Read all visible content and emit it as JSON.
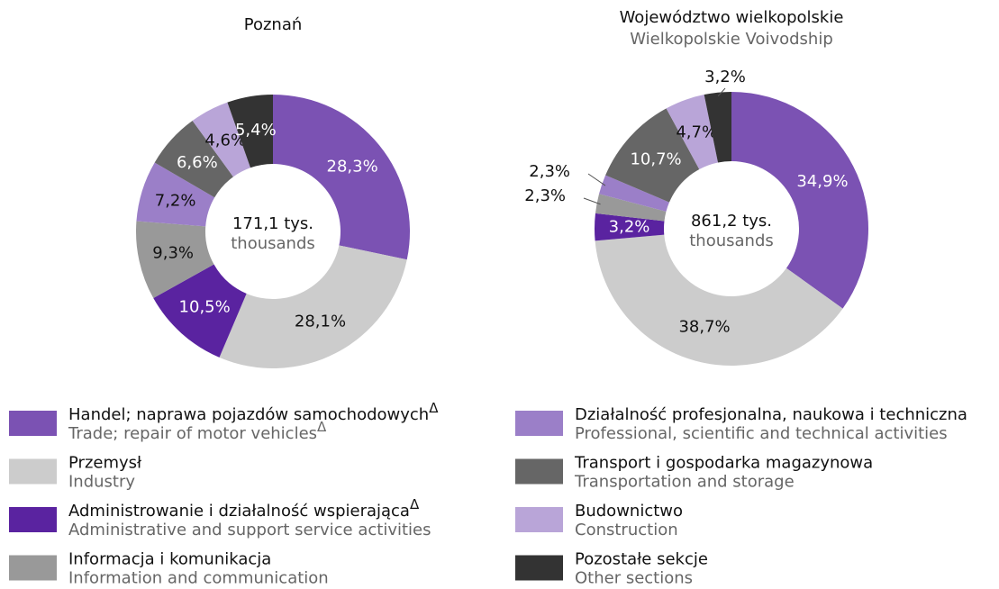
{
  "chart_data": [
    {
      "type": "pie",
      "title": "Poznań",
      "center_value": "171,1 tys.",
      "center_unit": "thousands",
      "values": [
        28.3,
        28.1,
        10.5,
        9.3,
        7.2,
        6.6,
        4.6,
        5.4
      ],
      "value_labels": [
        "28,3%",
        "28,1%",
        "10,5%",
        "9,3%",
        "7,2%",
        "6,6%",
        "4,6%",
        "5,4%"
      ]
    },
    {
      "type": "pie",
      "title": "Województwo wielkopolskie",
      "subtitle": "Wielkopolskie Voivodship",
      "center_value": "861,2 tys.",
      "center_unit": "thousands",
      "values": [
        34.9,
        38.7,
        3.2,
        2.3,
        2.3,
        10.7,
        4.7,
        3.2
      ],
      "value_labels": [
        "34,9%",
        "38,7%",
        "3,2%",
        "2,3%",
        "2,3%",
        "10,7%",
        "4,7%",
        "3,2%"
      ]
    }
  ],
  "legend": [
    {
      "name": "Handel; naprawa pojazdów samochodowych",
      "note": "Δ",
      "name_en": "Trade; repair of motor vehicles",
      "note_en": "Δ",
      "color": "#7b52b3"
    },
    {
      "name": "Przemysł",
      "name_en": "Industry",
      "color": "#cccccc"
    },
    {
      "name": "Administrowanie i działalność wspierająca",
      "note": "Δ",
      "name_en": "Administrative and support service activities",
      "color": "#5a23a0"
    },
    {
      "name": "Informacja i komunikacja",
      "name_en": "Information and communication",
      "color": "#999999"
    },
    {
      "name": "Działalność profesjonalna, naukowa i techniczna",
      "name_en": "Professional, scientific and technical activities",
      "color": "#9b7fc8"
    },
    {
      "name": "Transport i gospodarka magazynowa",
      "name_en": "Transportation and storage",
      "color": "#666666"
    },
    {
      "name": "Budownictwo",
      "name_en": "Construction",
      "color": "#b9a5d8"
    },
    {
      "name": "Pozostałe sekcje",
      "name_en": "Other sections",
      "color": "#333333"
    }
  ]
}
